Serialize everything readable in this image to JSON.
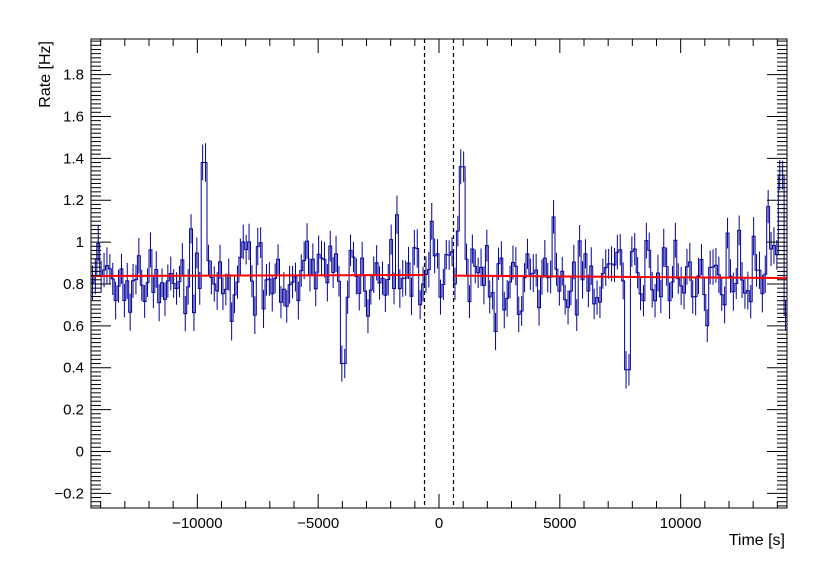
{
  "chart_data": {
    "type": "line",
    "xlabel": "Time [s]",
    "ylabel": "Rate [Hz]",
    "xlim": [
      -14400,
      14400
    ],
    "ylim": [
      -0.27,
      1.97
    ],
    "x_ticks": [
      -10000,
      -5000,
      0,
      5000,
      10000
    ],
    "x_tick_labels": [
      "−10000",
      "−5000",
      "0",
      "5000",
      "10000"
    ],
    "y_ticks": [
      -0.2,
      0,
      0.2,
      0.4,
      0.6,
      0.8,
      1,
      1.2,
      1.4,
      1.6,
      1.8
    ],
    "y_tick_labels": [
      "−0.2",
      "0",
      "0.2",
      "0.4",
      "0.6",
      "0.8",
      "1",
      "1.2",
      "1.4",
      "1.6",
      "1.8"
    ],
    "grid": false,
    "series": [
      {
        "style": "error-bar histogram",
        "color": "#000099",
        "bin_width_s": 120,
        "mean_rate": 0.84,
        "typical_error": 0.08,
        "notable_peaks": [
          {
            "x": -9700,
            "y": 1.38
          },
          {
            "x": 1000,
            "y": 1.36
          },
          {
            "x": 14200,
            "y": 1.32
          }
        ],
        "notable_dips": [
          {
            "x": -4000,
            "y": 0.42
          },
          {
            "x": 7800,
            "y": 0.39
          }
        ]
      },
      {
        "style": "fit line",
        "color": "#ff0000",
        "segments": [
          {
            "x": [
              -14400,
              -600
            ],
            "y": [
              0.838,
              0.843
            ]
          },
          {
            "x": [
              600,
              14400
            ],
            "y": [
              0.84,
              0.828
            ]
          }
        ]
      }
    ],
    "vertical_lines": [
      {
        "x": -600,
        "style": "dashed",
        "color": "#000000"
      },
      {
        "x": 600,
        "style": "dashed",
        "color": "#000000"
      }
    ]
  }
}
